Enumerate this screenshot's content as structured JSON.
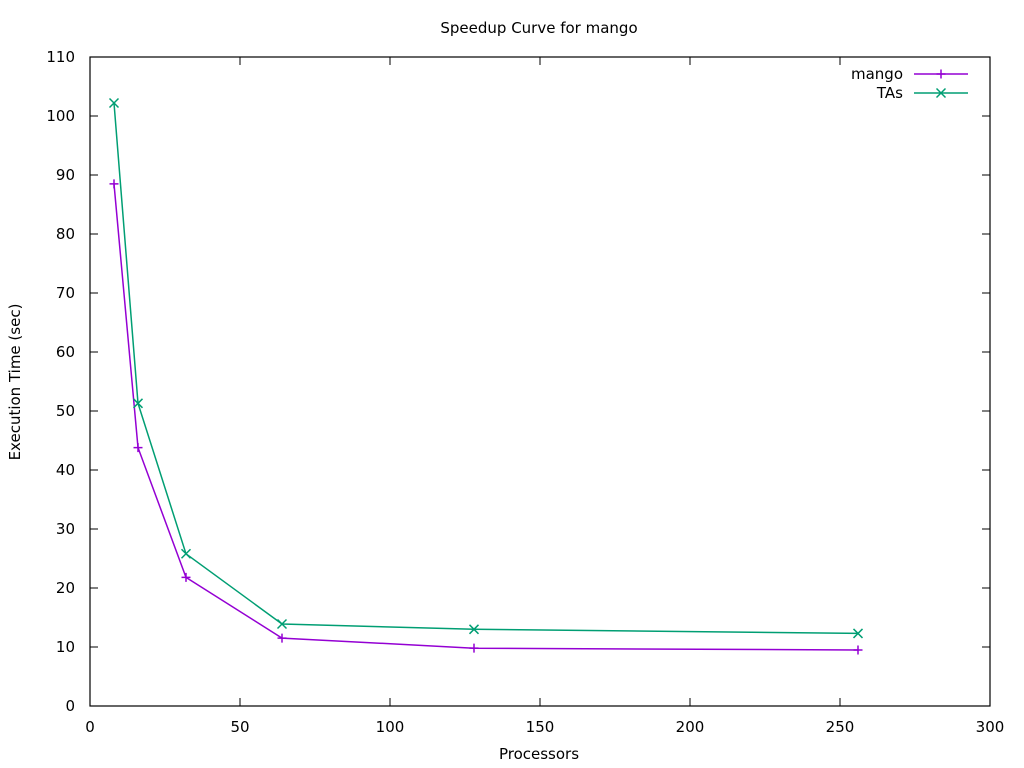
{
  "chart_data": {
    "type": "line",
    "title": "Speedup Curve for mango",
    "xlabel": "Processors",
    "ylabel": "Execution Time (sec)",
    "xlim": [
      0,
      300
    ],
    "ylim": [
      0,
      110
    ],
    "xticks": [
      0,
      50,
      100,
      150,
      200,
      250,
      300
    ],
    "yticks": [
      0,
      10,
      20,
      30,
      40,
      50,
      60,
      70,
      80,
      90,
      100,
      110
    ],
    "grid": false,
    "legend_position": "top-right",
    "series": [
      {
        "name": "mango",
        "color": "#9400d3",
        "marker": "plus",
        "x": [
          8,
          16,
          32,
          64,
          128,
          256
        ],
        "y": [
          88.5,
          43.8,
          21.8,
          11.5,
          9.8,
          9.5
        ]
      },
      {
        "name": "TAs",
        "color": "#009e73",
        "marker": "cross",
        "x": [
          8,
          16,
          32,
          64,
          128,
          256
        ],
        "y": [
          102.2,
          51.3,
          25.8,
          13.9,
          13.0,
          12.3
        ]
      }
    ]
  }
}
